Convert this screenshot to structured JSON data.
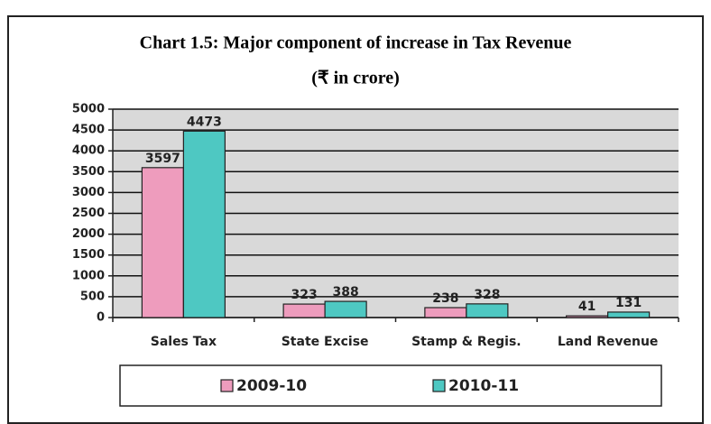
{
  "chart_data": {
    "type": "bar",
    "title": "Chart 1.5: Major component of increase in Tax Revenue",
    "subtitle": "(₹  in crore)",
    "categories": [
      "Sales Tax",
      "State Excise",
      "Stamp & Regis.",
      "Land Revenue"
    ],
    "series": [
      {
        "name": "2009-10",
        "color": "#ee9cbd",
        "values": [
          3597,
          323,
          238,
          41
        ]
      },
      {
        "name": "2010-11",
        "color": "#4ec8c2",
        "values": [
          4473,
          388,
          328,
          131
        ]
      }
    ],
    "ylim": [
      0,
      5000
    ],
    "yticks": [
      0,
      500,
      1000,
      1500,
      2000,
      2500,
      3000,
      3500,
      4000,
      4500,
      5000
    ],
    "grid": true,
    "legend": "bottom"
  }
}
